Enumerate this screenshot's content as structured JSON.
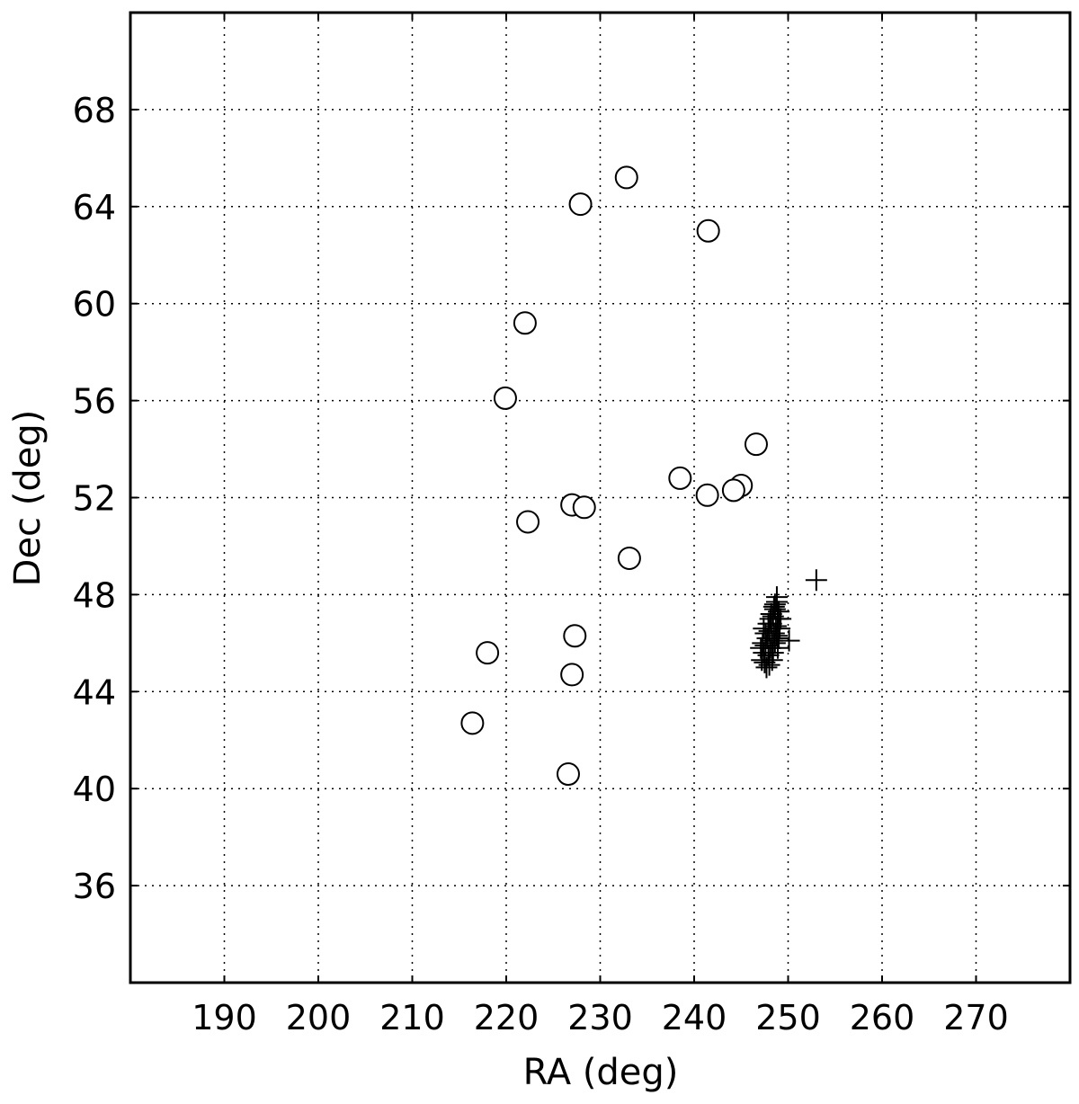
{
  "chart_data": {
    "type": "scatter",
    "xlabel": "RA (deg)",
    "ylabel": "Dec (deg)",
    "xlim": [
      180,
      280
    ],
    "ylim": [
      32,
      72
    ],
    "xticks": [
      190,
      200,
      210,
      220,
      230,
      240,
      250,
      260,
      270
    ],
    "yticks": [
      36,
      40,
      44,
      48,
      52,
      56,
      60,
      64,
      68
    ],
    "grid": true,
    "series": [
      {
        "marker": "circle",
        "color": "#000000",
        "x": [
          232.8,
          227.9,
          241.5,
          222.0,
          219.9,
          246.6,
          238.5,
          241.4,
          245.0,
          244.2,
          227.0,
          228.3,
          222.3,
          233.1,
          227.3,
          227.0,
          218.0,
          216.4,
          226.6
        ],
        "values": [
          65.2,
          64.1,
          63.0,
          59.2,
          56.1,
          54.2,
          52.8,
          52.1,
          52.5,
          52.3,
          51.7,
          51.6,
          51.0,
          49.5,
          46.3,
          44.7,
          45.6,
          42.7,
          40.6
        ]
      },
      {
        "marker": "plus",
        "color": "#000000",
        "x": [
          247.2,
          247.4,
          247.6,
          247.8,
          248.0,
          248.2,
          248.4,
          248.6,
          248.8,
          247.5,
          247.9,
          248.1,
          248.3,
          248.5,
          248.7,
          248.9,
          249.0,
          247.3,
          247.6,
          247.9,
          248.2,
          248.5,
          248.0,
          248.4,
          248.6,
          248.8,
          249.1,
          249.2,
          247.1,
          247.7,
          248.3,
          248.9,
          249.0,
          248.1,
          248.6,
          248.8,
          247.4,
          250.1,
          253.0
        ],
        "values": [
          45.3,
          45.6,
          45.9,
          46.2,
          46.5,
          46.8,
          47.1,
          47.4,
          47.7,
          45.2,
          45.5,
          45.8,
          46.1,
          46.4,
          46.7,
          47.0,
          47.3,
          46.0,
          46.4,
          46.8,
          47.2,
          47.5,
          45.1,
          45.6,
          46.0,
          46.3,
          46.6,
          47.0,
          45.8,
          45.0,
          45.3,
          45.8,
          46.2,
          47.0,
          47.6,
          47.9,
          46.6,
          46.1,
          48.6
        ]
      }
    ]
  }
}
